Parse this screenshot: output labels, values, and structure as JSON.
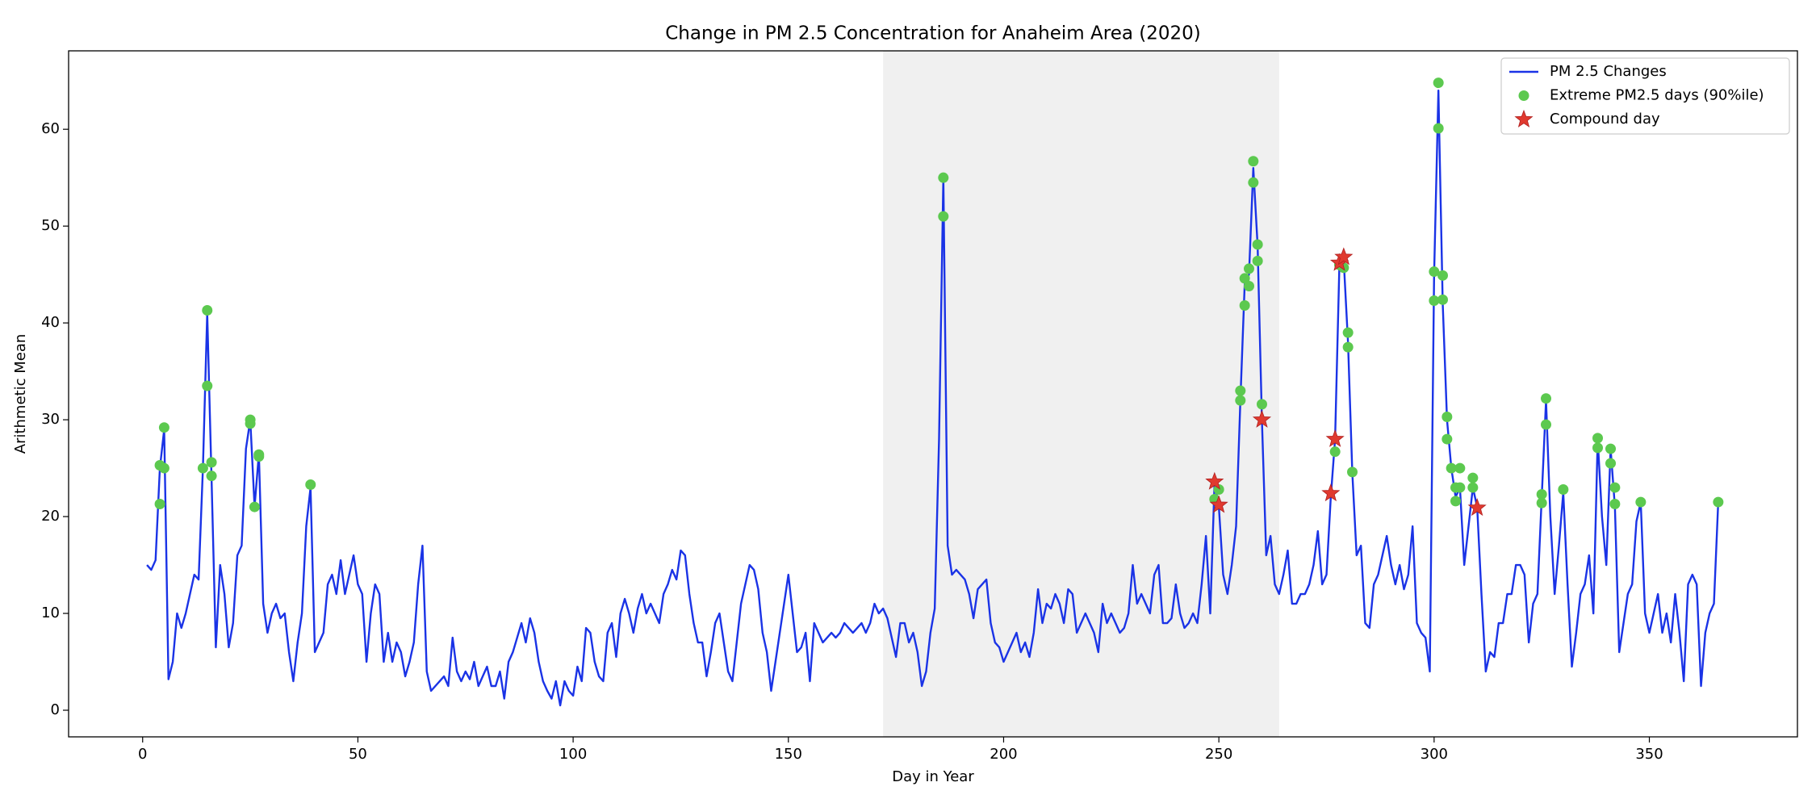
{
  "chart_data": {
    "type": "line",
    "title": "Change in  PM 2.5 Concentration for Anaheim Area (2020)",
    "x_label": "Day in Year",
    "y_label": "Arithmetic Mean",
    "xlim": [
      -17.2,
      384.4
    ],
    "ylim": [
      -2.75,
      68.1
    ],
    "xticks": [
      0,
      50,
      100,
      150,
      200,
      250,
      300,
      350
    ],
    "yticks": [
      0,
      10,
      20,
      30,
      40,
      50,
      60
    ],
    "shaded_span": [
      172,
      264
    ],
    "shaded_color": "#f0f0f0",
    "legend": "upper right",
    "series": [
      {
        "name": "PM 2.5 Changes",
        "type": "line",
        "color": "#1a33e6",
        "x": [
          1,
          2,
          3,
          4,
          5,
          6,
          7,
          8,
          9,
          10,
          11,
          12,
          13,
          14,
          15,
          16,
          17,
          18,
          19,
          20,
          21,
          22,
          23,
          24,
          25,
          26,
          27,
          28,
          29,
          30,
          31,
          32,
          33,
          34,
          35,
          36,
          37,
          38,
          39,
          40,
          41,
          42,
          43,
          44,
          45,
          46,
          47,
          48,
          49,
          50,
          51,
          52,
          53,
          54,
          55,
          56,
          57,
          58,
          59,
          60,
          61,
          62,
          63,
          64,
          65,
          66,
          67,
          68,
          69,
          70,
          71,
          72,
          73,
          74,
          75,
          76,
          77,
          78,
          79,
          80,
          81,
          82,
          83,
          84,
          85,
          86,
          87,
          88,
          89,
          90,
          91,
          92,
          93,
          94,
          95,
          96,
          97,
          98,
          99,
          100,
          101,
          102,
          103,
          104,
          105,
          106,
          107,
          108,
          109,
          110,
          111,
          112,
          113,
          114,
          115,
          116,
          117,
          118,
          119,
          120,
          121,
          122,
          123,
          124,
          125,
          126,
          127,
          128,
          129,
          130,
          131,
          132,
          133,
          134,
          135,
          136,
          137,
          138,
          139,
          140,
          141,
          142,
          143,
          144,
          145,
          146,
          147,
          148,
          149,
          150,
          151,
          152,
          153,
          154,
          155,
          156,
          157,
          158,
          159,
          160,
          161,
          162,
          163,
          164,
          165,
          166,
          167,
          168,
          169,
          170,
          171,
          172,
          173,
          174,
          175,
          176,
          177,
          178,
          179,
          180,
          181,
          182,
          183,
          184,
          185,
          186,
          187,
          188,
          189,
          190,
          191,
          192,
          193,
          194,
          195,
          196,
          197,
          198,
          199,
          200,
          201,
          202,
          203,
          204,
          205,
          206,
          207,
          208,
          209,
          210,
          211,
          212,
          213,
          214,
          215,
          216,
          217,
          218,
          219,
          220,
          221,
          222,
          223,
          224,
          225,
          226,
          227,
          228,
          229,
          230,
          231,
          232,
          233,
          234,
          235,
          236,
          237,
          238,
          239,
          240,
          241,
          242,
          243,
          244,
          245,
          246,
          247,
          248,
          249,
          250,
          251,
          252,
          253,
          254,
          255,
          256,
          257,
          258,
          259,
          260,
          261,
          262,
          263,
          264,
          265,
          266,
          267,
          268,
          269,
          270,
          271,
          272,
          273,
          274,
          275,
          276,
          277,
          278,
          279,
          280,
          281,
          282,
          283,
          284,
          285,
          286,
          287,
          288,
          289,
          290,
          291,
          292,
          293,
          294,
          295,
          296,
          297,
          298,
          299,
          300,
          301,
          302,
          303,
          304,
          305,
          306,
          307,
          308,
          309,
          310,
          311,
          312,
          313,
          314,
          315,
          316,
          317,
          318,
          319,
          320,
          321,
          322,
          323,
          324,
          325,
          326,
          327,
          328,
          329,
          330,
          331,
          332,
          333,
          334,
          335,
          336,
          337,
          338,
          339,
          340,
          341,
          342,
          343,
          344,
          345,
          346,
          347,
          348,
          349,
          350,
          351,
          352,
          353,
          354,
          355,
          356,
          357,
          358,
          359,
          360,
          361,
          362,
          363,
          364,
          365,
          366
        ],
        "values": [
          15,
          14.5,
          15.5,
          25,
          29,
          3.2,
          5,
          10,
          8.5,
          10,
          12,
          14,
          13.5,
          25,
          41,
          24,
          6.5,
          15,
          12,
          6.5,
          9,
          16,
          17,
          27,
          30,
          21,
          26.5,
          11,
          8,
          10,
          11,
          9.5,
          10,
          6,
          3,
          7,
          10,
          19,
          23,
          6,
          7,
          8,
          13,
          14,
          12,
          15.5,
          12,
          14,
          16,
          13,
          12,
          5,
          10,
          13,
          12,
          5,
          8,
          5,
          7,
          6,
          3.5,
          5,
          7,
          13,
          17,
          4,
          2,
          2.5,
          3,
          3.5,
          2.5,
          7.5,
          4,
          3,
          4,
          3.2,
          5,
          2.5,
          3.5,
          4.5,
          2.5,
          2.5,
          4,
          1.2,
          5,
          6,
          7.5,
          9,
          7,
          9.5,
          8,
          5,
          3,
          2,
          1.2,
          3,
          0.5,
          3,
          2,
          1.5,
          4.5,
          3,
          8.5,
          8,
          5,
          3.5,
          3,
          8,
          9,
          5.5,
          10,
          11.5,
          10,
          8,
          10.5,
          12,
          10,
          11,
          10,
          9,
          12,
          13,
          14.5,
          13.5,
          16.5,
          16,
          12,
          9,
          7,
          7,
          3.5,
          6,
          9,
          10,
          7,
          4,
          3,
          7,
          11,
          13,
          15,
          14.5,
          12.5,
          8,
          6,
          2,
          5,
          8,
          11,
          14,
          10,
          6,
          6.5,
          8,
          3,
          9,
          8,
          7,
          7.5,
          8,
          7.5,
          8,
          9,
          8.5,
          8,
          8.5,
          9,
          8,
          9,
          11,
          10,
          10.5,
          9.5,
          7.5,
          5.5,
          9,
          9,
          7,
          8,
          6,
          2.5,
          4,
          8,
          10.5,
          28,
          55,
          17,
          14,
          14.5,
          14,
          13.5,
          12,
          9.5,
          12.5,
          13,
          13.5,
          9,
          7,
          6.5,
          5,
          6,
          7,
          8,
          6,
          7,
          5.5,
          8,
          12.5,
          9,
          11,
          10.5,
          12,
          11,
          9,
          12.5,
          12,
          8,
          9,
          10,
          9,
          8,
          6,
          11,
          9,
          10,
          9,
          8,
          8.5,
          10,
          15,
          11,
          12,
          11,
          10,
          14,
          15,
          9,
          9,
          9.5,
          13,
          10,
          8.5,
          9,
          10,
          9,
          13,
          18,
          10,
          23.5,
          21,
          14,
          12,
          15,
          19,
          32,
          44,
          45,
          56,
          48,
          30,
          16,
          18,
          13,
          12,
          14,
          16.5,
          11,
          11,
          12,
          12,
          13,
          15,
          18.5,
          13,
          14,
          22,
          28,
          46,
          46.5,
          38,
          24.5,
          16,
          17,
          9,
          8.5,
          13,
          14,
          16,
          18,
          15,
          13,
          15,
          12.5,
          14,
          19,
          9,
          8,
          7.5,
          4,
          45,
          64,
          42,
          30,
          25,
          22,
          23,
          15,
          19,
          23,
          21,
          12,
          4,
          6,
          5.5,
          9,
          9,
          12,
          12,
          15,
          15,
          14,
          7,
          11,
          12,
          22,
          32,
          20,
          12,
          17,
          22.5,
          13,
          4.5,
          8,
          12,
          13,
          16,
          10,
          28,
          20,
          15,
          27,
          21,
          6,
          9,
          12,
          13,
          19.5,
          21.5,
          10,
          8,
          10,
          12,
          8,
          10,
          7,
          12,
          8,
          3,
          13,
          14,
          13,
          2.5,
          8,
          10,
          11,
          21.5
        ]
      },
      {
        "name": "Extreme PM2.5 days (90%ile)",
        "type": "scatter",
        "marker": "circle",
        "color": "#5cc94f",
        "x": [
          4,
          4,
          5,
          5,
          14,
          15,
          15,
          16,
          16,
          25,
          25,
          26,
          27,
          27,
          39,
          186,
          186,
          249,
          250,
          255,
          255,
          256,
          256,
          257,
          257,
          258,
          258,
          259,
          259,
          260,
          277,
          278,
          279,
          280,
          280,
          281,
          300,
          300,
          301,
          301,
          302,
          302,
          303,
          303,
          304,
          305,
          305,
          306,
          306,
          309,
          309,
          325,
          325,
          326,
          326,
          330,
          338,
          338,
          341,
          341,
          342,
          342,
          348,
          366
        ],
        "values": [
          25.3,
          21.3,
          29.2,
          25,
          25,
          41.3,
          33.5,
          25.6,
          24.2,
          30,
          29.6,
          21,
          26.4,
          26.2,
          23.3,
          55,
          51,
          21.8,
          22.8,
          33,
          32,
          41.8,
          44.6,
          43.8,
          45.6,
          56.7,
          54.5,
          48.1,
          46.4,
          31.6,
          26.7,
          46,
          45.7,
          39,
          37.5,
          24.6,
          45.3,
          42.3,
          64.8,
          60.1,
          44.9,
          42.4,
          30.3,
          28,
          25,
          21.6,
          23,
          25,
          23,
          24,
          23,
          22.3,
          21.4,
          32.2,
          29.5,
          22.8,
          28.1,
          27.1,
          27,
          25.5,
          23,
          21.3,
          21.5,
          21.5
        ]
      },
      {
        "name": "Compound day",
        "type": "scatter",
        "marker": "star",
        "color": "#e03a2f",
        "x": [
          249,
          250,
          260,
          276,
          277,
          278,
          279,
          310
        ],
        "values": [
          23.6,
          21.2,
          30,
          22.4,
          28,
          46.2,
          46.8,
          20.9
        ]
      }
    ]
  }
}
